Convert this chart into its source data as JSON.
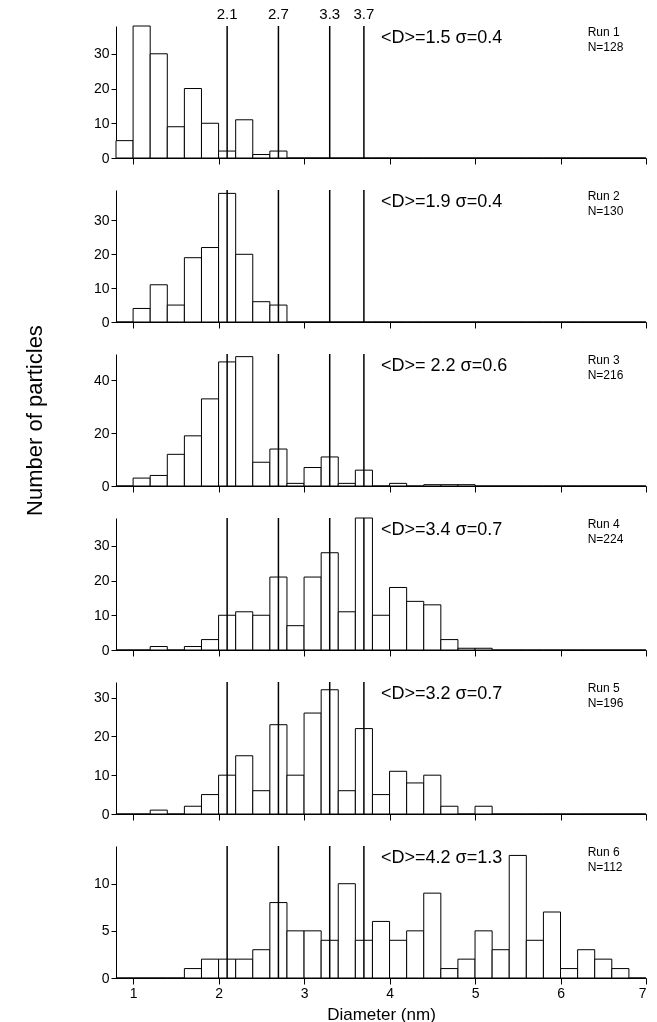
{
  "chart_data": [
    {
      "type": "histogram",
      "bins": [
        0.8,
        1,
        1.2,
        1.4,
        1.6,
        1.8,
        2,
        2.2,
        2.4,
        2.6,
        2.8,
        3,
        3.2,
        3.4,
        3.6,
        3.8,
        4,
        4.2,
        4.4,
        4.6,
        4.8,
        5,
        5.2,
        5.4,
        5.6,
        5.8,
        6,
        6.2,
        6.4,
        6.6,
        6.8,
        7
      ],
      "values": [
        5,
        38,
        30,
        9,
        20,
        10,
        2,
        11,
        1,
        2,
        0,
        0,
        0,
        0,
        0,
        0,
        0,
        0,
        0,
        0,
        0,
        0,
        0,
        0,
        0,
        0,
        0,
        0,
        0,
        0,
        0
      ],
      "xlim": [
        0.8,
        7
      ],
      "ylim": [
        0,
        38
      ],
      "xticks": [
        1,
        2,
        3,
        4,
        5,
        6,
        7
      ],
      "yticks": [
        0,
        10,
        20,
        30
      ],
      "tick_labels": "y",
      "ref_lines": [
        {
          "axis": "x",
          "value": 2.1,
          "label": "2.1"
        },
        {
          "axis": "x",
          "value": 2.7,
          "label": "2.7"
        },
        {
          "axis": "x",
          "value": 3.3,
          "label": "3.3"
        },
        {
          "axis": "x",
          "value": 3.7,
          "label": "3.7"
        }
      ],
      "annotations": [
        "<D>=1.5 σ=0.4",
        "Run 1",
        "N=128"
      ]
    },
    {
      "type": "histogram",
      "bins": [
        0.8,
        1,
        1.2,
        1.4,
        1.6,
        1.8,
        2,
        2.2,
        2.4,
        2.6,
        2.8,
        3,
        3.2,
        3.4,
        3.6,
        3.8,
        4,
        4.2,
        4.4,
        4.6,
        4.8,
        5,
        5.2,
        5.4,
        5.6,
        5.8,
        6,
        6.2,
        6.4,
        6.6,
        6.8,
        7
      ],
      "values": [
        0,
        4,
        11,
        5,
        19,
        22,
        38,
        20,
        6,
        5,
        0,
        0,
        0,
        0,
        0,
        0,
        0,
        0,
        0,
        0,
        0,
        0,
        0,
        0,
        0,
        0,
        0,
        0,
        0,
        0,
        0
      ],
      "xlim": [
        0.8,
        7
      ],
      "ylim": [
        0,
        39
      ],
      "xticks": [
        1,
        2,
        3,
        4,
        5,
        6,
        7
      ],
      "yticks": [
        0,
        10,
        20,
        30
      ],
      "tick_labels": "y",
      "ref_lines": [
        {
          "axis": "x",
          "value": 2.1
        },
        {
          "axis": "x",
          "value": 2.7
        },
        {
          "axis": "x",
          "value": 3.3
        },
        {
          "axis": "x",
          "value": 3.7
        }
      ],
      "annotations": [
        "<D>=1.9 σ=0.4",
        "Run 2",
        "N=130"
      ]
    },
    {
      "type": "histogram",
      "bins": [
        0.8,
        1,
        1.2,
        1.4,
        1.6,
        1.8,
        2,
        2.2,
        2.4,
        2.6,
        2.8,
        3,
        3.2,
        3.4,
        3.6,
        3.8,
        4,
        4.2,
        4.4,
        4.6,
        4.8,
        5,
        5.2,
        5.4,
        5.6,
        5.8,
        6,
        6.2,
        6.4,
        6.6,
        6.8,
        7
      ],
      "ylabel": "Number of particles",
      "values": [
        0,
        3,
        4,
        12,
        19,
        33,
        47,
        49,
        9,
        14,
        1,
        7,
        11,
        1,
        6,
        0,
        1,
        0,
        0.5,
        0.5,
        0.5,
        0,
        0,
        0,
        0,
        0,
        0,
        0,
        0,
        0,
        0
      ],
      "xlim": [
        0.8,
        7
      ],
      "ylim": [
        0,
        50
      ],
      "xticks": [
        1,
        2,
        3,
        4,
        5,
        6,
        7
      ],
      "yticks": [
        0,
        20,
        40
      ],
      "tick_labels": "y",
      "ref_lines": [
        {
          "axis": "x",
          "value": 2.1
        },
        {
          "axis": "x",
          "value": 2.7
        },
        {
          "axis": "x",
          "value": 3.3
        },
        {
          "axis": "x",
          "value": 3.7
        }
      ],
      "annotations": [
        "<D>= 2.2 σ=0.6",
        "Run 3",
        "N=216"
      ]
    },
    {
      "type": "histogram",
      "bins": [
        0.8,
        1,
        1.2,
        1.4,
        1.6,
        1.8,
        2,
        2.2,
        2.4,
        2.6,
        2.8,
        3,
        3.2,
        3.4,
        3.6,
        3.8,
        4,
        4.2,
        4.4,
        4.6,
        4.8,
        5,
        5.2,
        5.4,
        5.6,
        5.8,
        6,
        6.2,
        6.4,
        6.6,
        6.8,
        7
      ],
      "values": [
        0,
        0,
        1,
        0,
        1,
        3,
        10,
        11,
        10,
        21,
        7,
        21,
        28,
        11,
        38,
        10,
        18,
        14,
        13,
        3,
        0.5,
        0.5,
        0,
        0,
        0,
        0,
        0,
        0,
        0,
        0,
        0
      ],
      "xlim": [
        0.8,
        7
      ],
      "ylim": [
        0,
        38
      ],
      "xticks": [
        1,
        2,
        3,
        4,
        5,
        6,
        7
      ],
      "yticks": [
        0,
        10,
        20,
        30
      ],
      "tick_labels": "y",
      "ref_lines": [
        {
          "axis": "x",
          "value": 2.1
        },
        {
          "axis": "x",
          "value": 2.7
        },
        {
          "axis": "x",
          "value": 3.3
        },
        {
          "axis": "x",
          "value": 3.7
        }
      ],
      "annotations": [
        "<D>=3.4 σ=0.7",
        "Run 4",
        "N=224"
      ]
    },
    {
      "type": "histogram",
      "bins": [
        0.8,
        1,
        1.2,
        1.4,
        1.6,
        1.8,
        2,
        2.2,
        2.4,
        2.6,
        2.8,
        3,
        3.2,
        3.4,
        3.6,
        3.8,
        4,
        4.2,
        4.4,
        4.6,
        4.8,
        5,
        5.2,
        5.4,
        5.6,
        5.8,
        6,
        6.2,
        6.4,
        6.6,
        6.8,
        7
      ],
      "values": [
        0,
        0,
        1,
        0,
        2,
        5,
        10,
        15,
        6,
        23,
        10,
        26,
        32,
        6,
        22,
        5,
        11,
        8,
        10,
        2,
        0,
        2,
        0,
        0,
        0,
        0,
        0,
        0,
        0,
        0,
        0
      ],
      "xlim": [
        0.8,
        7
      ],
      "ylim": [
        0,
        34
      ],
      "xticks": [
        1,
        2,
        3,
        4,
        5,
        6,
        7
      ],
      "yticks": [
        0,
        10,
        20,
        30
      ],
      "tick_labels": "y",
      "ref_lines": [
        {
          "axis": "x",
          "value": 2.1
        },
        {
          "axis": "x",
          "value": 2.7
        },
        {
          "axis": "x",
          "value": 3.3
        },
        {
          "axis": "x",
          "value": 3.7
        }
      ],
      "annotations": [
        "<D>=3.2 σ=0.7",
        "Run 5",
        "N=196"
      ]
    },
    {
      "type": "histogram",
      "xlabel": "Diameter (nm)",
      "bins": [
        0.8,
        1,
        1.2,
        1.4,
        1.6,
        1.8,
        2,
        2.2,
        2.4,
        2.6,
        2.8,
        3,
        3.2,
        3.4,
        3.6,
        3.8,
        4,
        4.2,
        4.4,
        4.6,
        4.8,
        5,
        5.2,
        5.4,
        5.6,
        5.8,
        6,
        6.2,
        6.4,
        6.6,
        6.8,
        7
      ],
      "values": [
        0,
        0,
        0,
        0,
        1,
        2,
        2,
        2,
        3,
        8,
        5,
        5,
        4,
        10,
        4,
        6,
        4,
        5,
        9,
        1,
        2,
        5,
        3,
        13,
        4,
        7,
        1,
        3,
        2,
        1,
        0
      ],
      "xlim": [
        0.8,
        7
      ],
      "ylim": [
        0,
        14
      ],
      "xticks": [
        1,
        2,
        3,
        4,
        5,
        6,
        7
      ],
      "yticks": [
        0,
        5,
        10
      ],
      "ref_lines": [
        {
          "axis": "x",
          "value": 2.1
        },
        {
          "axis": "x",
          "value": 2.7
        },
        {
          "axis": "x",
          "value": 3.3
        },
        {
          "axis": "x",
          "value": 3.7
        }
      ],
      "annotations": [
        "<D>=4.2 σ=1.3",
        "Run 6",
        "N=112"
      ]
    }
  ]
}
